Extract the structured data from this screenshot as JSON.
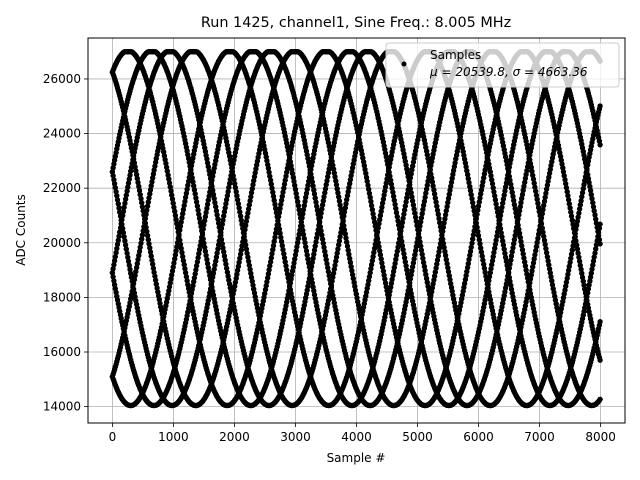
{
  "chart_data": {
    "type": "scatter",
    "title": "Run 1425, channel1, Sine Freq.: 8.005 MHz",
    "xlabel": "Sample #",
    "ylabel": "ADC Counts",
    "xlim": [
      -400,
      8400
    ],
    "ylim": [
      13400,
      27500
    ],
    "xticks": [
      0,
      1000,
      2000,
      3000,
      4000,
      5000,
      6000,
      7000,
      8000
    ],
    "yticks": [
      14000,
      16000,
      18000,
      20000,
      22000,
      24000,
      26000
    ],
    "grid": true,
    "legend": {
      "placement": "top-right",
      "entries": [
        {
          "label": "Samples",
          "stats": "μ = 20539.8, σ = 4663.36"
        }
      ]
    },
    "series": [
      {
        "name": "Samples",
        "color": "#000000",
        "marker": "circle",
        "model": "sine",
        "offset": 20540,
        "amplitude": 6500,
        "clip": [
          14000,
          27000
        ],
        "period_samples": 3245,
        "phases_start": [
          22600,
          26250,
          26250,
          22600,
          18900,
          15100,
          15100,
          18900
        ],
        "x_range": [
          0,
          8000
        ]
      }
    ]
  },
  "colors": {
    "grid": "#b0b0b0",
    "axis": "#000000",
    "marker": "#000000",
    "legend_border": "#cccccc"
  }
}
